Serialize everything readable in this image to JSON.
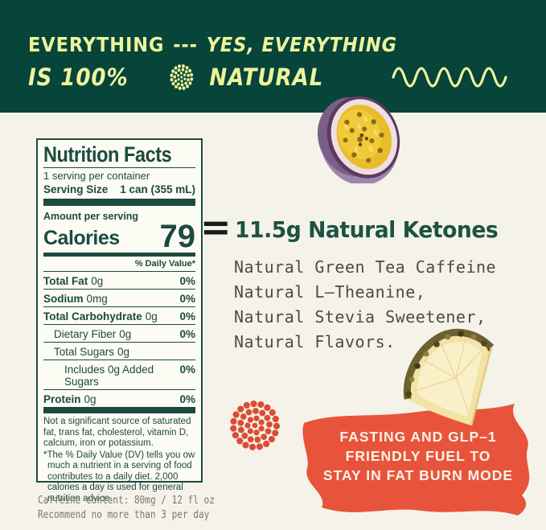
{
  "banner": {
    "line1_word": "EVERYTHING",
    "line1_dashes": "---",
    "line1_rest": "YES, EVERYTHING",
    "line2_start": "IS 100%",
    "line2_end": "NATURAL"
  },
  "nutrition_label": {
    "title": "Nutrition Facts",
    "servings_per_container": "1 serving per container",
    "serving_size_label": "Serving Size",
    "serving_size_value": "1 can (355 mL)",
    "amount_per_serving": "Amount per serving",
    "calories_label": "Calories",
    "calories_value": "79",
    "daily_value_header": "% Daily Value*",
    "rows": [
      {
        "label": "Total Fat",
        "amount": "0g",
        "dv": "0%"
      },
      {
        "label": "Sodium",
        "amount": "0mg",
        "dv": "0%"
      },
      {
        "label": "Total Carbohydrate",
        "amount": "0g",
        "dv": "0%"
      },
      {
        "label": "Dietary Fiber",
        "amount": "0g",
        "dv": "0%"
      },
      {
        "label": "Total Sugars",
        "amount": "0g",
        "dv": ""
      },
      {
        "label": "Includes 0g Added Sugars",
        "amount": "",
        "dv": "0%"
      },
      {
        "label": "Protein",
        "amount": "0g",
        "dv": "0%"
      }
    ],
    "footnote_sources": "Not a significant source of saturated fat, trans fat, cholesterol, vitamin D, calcium, iron or potassium.",
    "footnote_dv": "*The % Daily Value (DV) tells you ow much a nutrient in a serving of food contributes to a daily diet. 2,000 calories a day is used for general nutrition advice."
  },
  "equation": {
    "equals_sign": "=",
    "headline": "11.5g Natural Ketones",
    "body_lines": [
      "Natural Green Tea Caffeine",
      "Natural L–Theanine,",
      "Natural Stevia Sweetener,",
      "Natural Flavors."
    ]
  },
  "callout": {
    "lines": [
      "FASTING AND GLP–1",
      "FRIENDLY FUEL TO",
      "STAY IN FAT BURN MODE"
    ]
  },
  "footer": {
    "caffeine_line": "Caffeine content: 80mg / 12 fl oz",
    "recommendation_line": "Recommend no more than 3 per day"
  },
  "colors": {
    "banner_background": "#07443a",
    "accent_yellow": "#edf49b",
    "page_background": "#f5f3e9",
    "label_green": "#1c4a40",
    "headline_green": "#1e5145",
    "body_text_gray": "#4b4b45",
    "callout_red": "#e8543b",
    "dots_red": "#dc4c35",
    "footer_gray": "#77776e"
  }
}
